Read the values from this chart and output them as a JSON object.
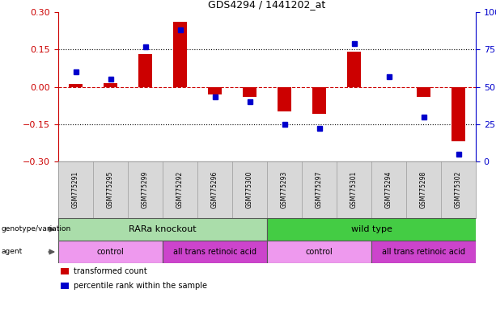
{
  "title": "GDS4294 / 1441202_at",
  "samples": [
    "GSM775291",
    "GSM775295",
    "GSM775299",
    "GSM775292",
    "GSM775296",
    "GSM775300",
    "GSM775293",
    "GSM775297",
    "GSM775301",
    "GSM775294",
    "GSM775298",
    "GSM775302"
  ],
  "bar_values": [
    0.01,
    0.015,
    0.13,
    0.26,
    -0.03,
    -0.04,
    -0.1,
    -0.11,
    0.14,
    0.0,
    -0.04,
    -0.22
  ],
  "dot_values": [
    60,
    55,
    77,
    88,
    43,
    40,
    25,
    22,
    79,
    57,
    30,
    5
  ],
  "ylim_left": [
    -0.3,
    0.3
  ],
  "ylim_right": [
    0,
    100
  ],
  "yticks_left": [
    -0.3,
    -0.15,
    0,
    0.15,
    0.3
  ],
  "yticks_right": [
    0,
    25,
    50,
    75,
    100
  ],
  "bar_color": "#cc0000",
  "dot_color": "#0000cc",
  "hline_color": "#cc0000",
  "dotted_color": "#000000",
  "genotype_labels": [
    {
      "label": "RARa knockout",
      "start": 0,
      "end": 6,
      "color": "#aaddaa"
    },
    {
      "label": "wild type",
      "start": 6,
      "end": 12,
      "color": "#44cc44"
    }
  ],
  "agent_labels": [
    {
      "label": "control",
      "start": 0,
      "end": 3,
      "color": "#ee99ee"
    },
    {
      "label": "all trans retinoic acid",
      "start": 3,
      "end": 6,
      "color": "#cc44cc"
    },
    {
      "label": "control",
      "start": 6,
      "end": 9,
      "color": "#ee99ee"
    },
    {
      "label": "all trans retinoic acid",
      "start": 9,
      "end": 12,
      "color": "#cc44cc"
    }
  ],
  "legend_items": [
    {
      "label": "transformed count",
      "color": "#cc0000"
    },
    {
      "label": "percentile rank within the sample",
      "color": "#0000cc"
    }
  ],
  "tick_label_color_left": "#cc0000",
  "tick_label_color_right": "#0000cc",
  "bg_color": "#ffffff",
  "sample_cell_color": "#d8d8d8",
  "bar_width": 0.4
}
